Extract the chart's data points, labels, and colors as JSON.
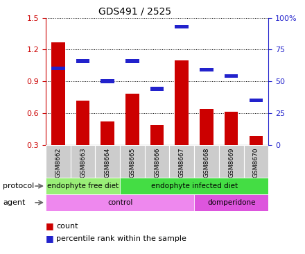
{
  "title": "GDS491 / 2525",
  "samples": [
    "GSM8662",
    "GSM8663",
    "GSM8664",
    "GSM8665",
    "GSM8666",
    "GSM8667",
    "GSM8668",
    "GSM8669",
    "GSM8670"
  ],
  "count_values": [
    1.27,
    0.72,
    0.52,
    0.78,
    0.49,
    1.1,
    0.64,
    0.61,
    0.38
  ],
  "percentile_values_pct": [
    60,
    66,
    50,
    66,
    44,
    93,
    59,
    54,
    35
  ],
  "ylim_left": [
    0.3,
    1.5
  ],
  "ylim_right": [
    0,
    100
  ],
  "yticks_left": [
    0.3,
    0.6,
    0.9,
    1.2,
    1.5
  ],
  "yticks_right": [
    0,
    25,
    50,
    75,
    100
  ],
  "ytick_labels_left": [
    "0.3",
    "0.6",
    "0.9",
    "1.2",
    "1.5"
  ],
  "ytick_labels_right": [
    "0",
    "25",
    "50",
    "75",
    "100%"
  ],
  "bar_color": "#cc0000",
  "percentile_color": "#2222cc",
  "protocol_groups": [
    {
      "label": "endophyte free diet",
      "start": 0,
      "end": 3,
      "color": "#99ee77"
    },
    {
      "label": "endophyte infected diet",
      "start": 3,
      "end": 9,
      "color": "#44dd44"
    }
  ],
  "agent_groups": [
    {
      "label": "control",
      "start": 0,
      "end": 6,
      "color": "#ee88ee"
    },
    {
      "label": "domperidone",
      "start": 6,
      "end": 9,
      "color": "#dd55dd"
    }
  ],
  "legend_count_label": "count",
  "legend_percentile_label": "percentile rank within the sample",
  "protocol_label": "protocol",
  "agent_label": "agent",
  "background_color": "#ffffff",
  "tick_area_color": "#cccccc",
  "bar_width": 0.55
}
